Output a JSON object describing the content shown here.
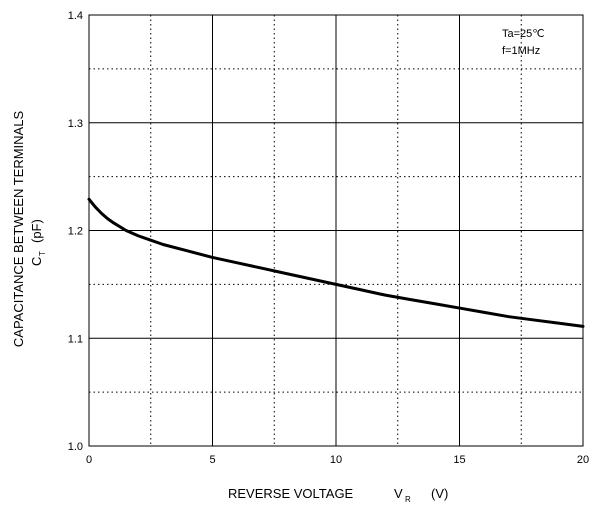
{
  "chart_data": {
    "type": "line",
    "title": "",
    "xlabel": "REVERSE VOLTAGE",
    "xlabel_symbol": "V",
    "xlabel_subscript": "R",
    "xlabel_unit": "(V)",
    "ylabel": "CAPACITANCE BETWEEN TERMINALS",
    "ylabel_symbol": "C",
    "ylabel_subscript": "T",
    "ylabel_unit": "(pF)",
    "xlim": [
      0,
      20
    ],
    "ylim": [
      1.0,
      1.4
    ],
    "x_ticks": [
      "0",
      "5",
      "10",
      "15",
      "20"
    ],
    "y_ticks": [
      "1.0",
      "1.1",
      "1.2",
      "1.3",
      "1.4"
    ],
    "grid": true,
    "conditions": [
      "Ta=25℃",
      "f=1MHz"
    ],
    "series": [
      {
        "x": [
          0,
          0.25,
          0.5,
          0.75,
          1,
          1.5,
          2,
          2.5,
          3,
          4,
          5,
          6,
          7,
          8,
          9,
          10,
          11,
          12,
          13,
          14,
          15,
          16,
          17,
          18,
          19,
          20
        ],
        "values": [
          1.229,
          1.222,
          1.216,
          1.211,
          1.207,
          1.2,
          1.195,
          1.191,
          1.187,
          1.181,
          1.175,
          1.17,
          1.165,
          1.16,
          1.155,
          1.15,
          1.145,
          1.14,
          1.136,
          1.132,
          1.128,
          1.124,
          1.12,
          1.117,
          1.114,
          1.111
        ]
      }
    ]
  }
}
